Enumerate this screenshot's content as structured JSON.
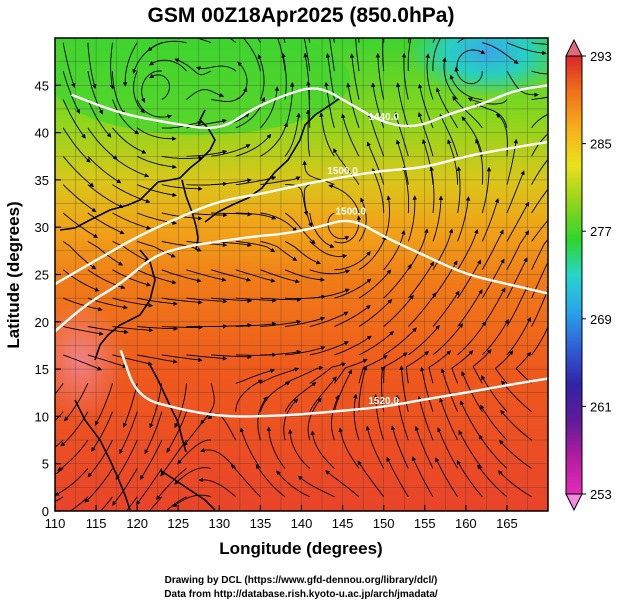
{
  "title": "GSM 00Z18Apr2025 (850.0hPa)",
  "xlabel": "Longitude (degrees)",
  "ylabel": "Latitude (degrees)",
  "credits": [
    "Drawing by DCL (https://www.gfd-dennou.org/library/dcl/)",
    "Data from http://database.rish.kyoto-u.ac.jp/arch/jmadata/"
  ],
  "map": {
    "lon_range": [
      110,
      170
    ],
    "lat_range": [
      0,
      50
    ],
    "lon_ticks": [
      "110",
      "115",
      "120",
      "125",
      "130",
      "135",
      "140",
      "145",
      "150",
      "155",
      "160",
      "165"
    ],
    "lat_ticks": [
      "0",
      "5",
      "10",
      "15",
      "20",
      "25",
      "30",
      "35",
      "40",
      "45"
    ],
    "grid": true
  },
  "colorbar": {
    "labels": [
      "293",
      "285",
      "277",
      "269",
      "261",
      "253"
    ],
    "colors": [
      "#d9262b",
      "#f0701a",
      "#f7b21a",
      "#e9e21b",
      "#98d41b",
      "#2fd52a",
      "#27d6c9",
      "#28a6ea",
      "#2f5cd6",
      "#3223a8",
      "#5e1b9a",
      "#b51da1",
      "#e22cb8"
    ]
  },
  "contours": [
    {
      "label": "1500.0",
      "points": [
        [
          110,
          24
        ],
        [
          115,
          26.5
        ],
        [
          120,
          29
        ],
        [
          125,
          31
        ],
        [
          130,
          32.8
        ],
        [
          135,
          33.5
        ],
        [
          140,
          34.5
        ],
        [
          145,
          35.3
        ],
        [
          150,
          36
        ],
        [
          155,
          36.3
        ],
        [
          160,
          37.5
        ],
        [
          165,
          38.3
        ],
        [
          170,
          39
        ]
      ]
    },
    {
      "label": "1440.0",
      "points": [
        [
          112,
          44
        ],
        [
          118,
          42
        ],
        [
          124,
          41
        ],
        [
          130,
          40.2
        ],
        [
          134,
          42.5
        ],
        [
          138,
          44
        ],
        [
          142,
          45
        ],
        [
          146,
          43
        ],
        [
          150,
          41
        ],
        [
          154,
          40.5
        ],
        [
          158,
          42
        ],
        [
          162,
          43
        ],
        [
          166,
          44.5
        ],
        [
          170,
          45
        ]
      ]
    },
    {
      "label": "1520.0",
      "points": [
        [
          118,
          17
        ],
        [
          120,
          12
        ],
        [
          125,
          10.8
        ],
        [
          130,
          10
        ],
        [
          135,
          10
        ],
        [
          140,
          10.2
        ],
        [
          145,
          10.6
        ],
        [
          150,
          11
        ],
        [
          155,
          11.8
        ],
        [
          160,
          12.5
        ],
        [
          165,
          13.3
        ],
        [
          170,
          14
        ]
      ]
    },
    {
      "label": "1500.0",
      "points": [
        [
          110,
          19
        ],
        [
          114,
          22
        ],
        [
          118,
          24
        ],
        [
          122,
          27
        ],
        [
          126,
          28
        ],
        [
          130,
          28.5
        ],
        [
          134,
          29
        ],
        [
          138,
          29.3
        ],
        [
          142,
          30
        ],
        [
          146,
          31
        ],
        [
          150,
          29
        ],
        [
          155,
          27
        ],
        [
          160,
          25
        ],
        [
          165,
          24
        ],
        [
          170,
          23
        ]
      ]
    }
  ]
}
